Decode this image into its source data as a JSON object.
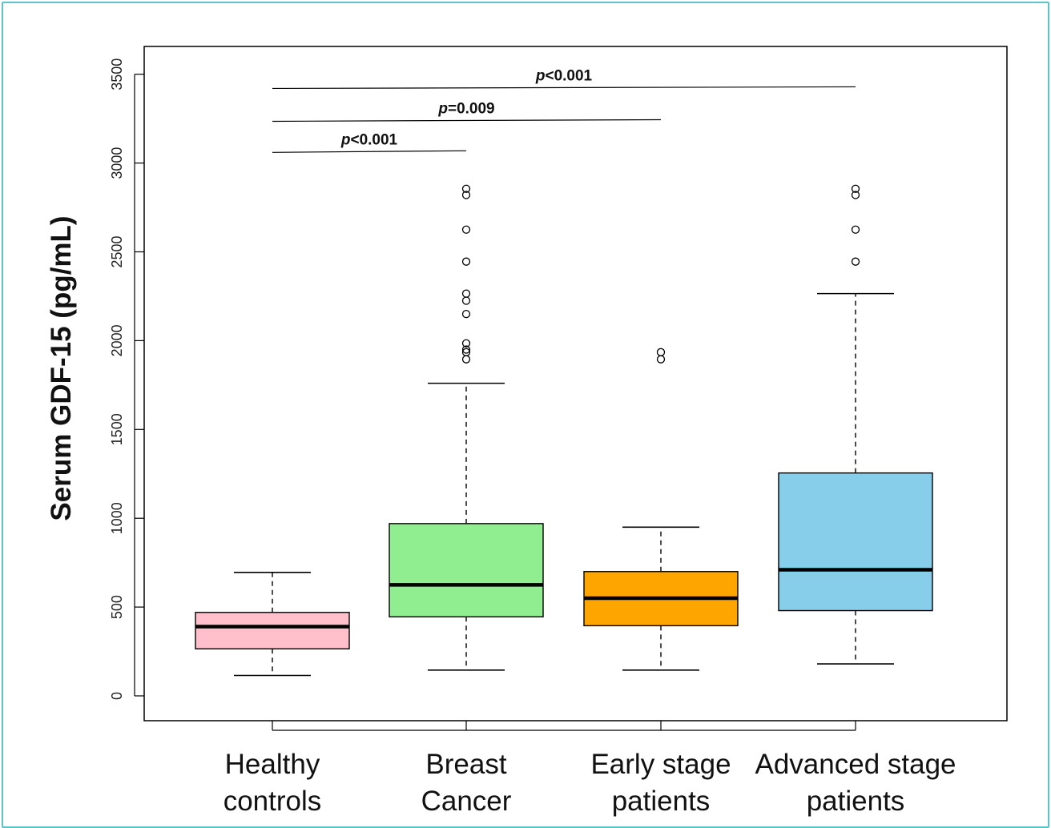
{
  "chart_data": {
    "type": "box",
    "title": "",
    "ylabel": "Serum GDF-15 (pg/mL)",
    "xlabel": "",
    "ylim": [
      -150,
      3650
    ],
    "yticks": [
      0,
      500,
      1000,
      1500,
      2000,
      2500,
      3000,
      3500
    ],
    "ytick_labels": [
      "0",
      "500",
      "1000",
      "1500",
      "2000",
      "2500",
      "3000",
      "3500"
    ],
    "grid": false,
    "groups": [
      {
        "name_lines": [
          "Healthy",
          "controls"
        ],
        "color": "#ffc0cb",
        "whisker_low": 115,
        "q1": 265,
        "median": 390,
        "q3": 470,
        "whisker_high": 695,
        "outliers": []
      },
      {
        "name_lines": [
          "Breast",
          "Cancer"
        ],
        "color": "#90ee90",
        "whisker_low": 145,
        "q1": 445,
        "median": 625,
        "q3": 970,
        "whisker_high": 1760,
        "outliers": [
          1895,
          1935,
          1950,
          1985,
          2150,
          2225,
          2265,
          2445,
          2625,
          2820,
          2855
        ]
      },
      {
        "name_lines": [
          "Early stage",
          "patients"
        ],
        "color": "#ffa500",
        "whisker_low": 145,
        "q1": 395,
        "median": 550,
        "q3": 700,
        "whisker_high": 950,
        "outliers": [
          1895,
          1935
        ]
      },
      {
        "name_lines": [
          "Advanced stage",
          "patients"
        ],
        "color": "#87ceeb",
        "whisker_low": 180,
        "q1": 480,
        "median": 710,
        "q3": 1255,
        "whisker_high": 2265,
        "outliers": [
          2445,
          2625,
          2820,
          2855
        ]
      }
    ],
    "comparisons": [
      {
        "from": 0,
        "to": 1,
        "y": 3060,
        "prefix": "p",
        "text": "<0.001"
      },
      {
        "from": 0,
        "to": 2,
        "y": 3235,
        "prefix": "p",
        "text": "=0.009"
      },
      {
        "from": 0,
        "to": 3,
        "y": 3420,
        "prefix": "p",
        "text": "<0.001"
      }
    ]
  }
}
